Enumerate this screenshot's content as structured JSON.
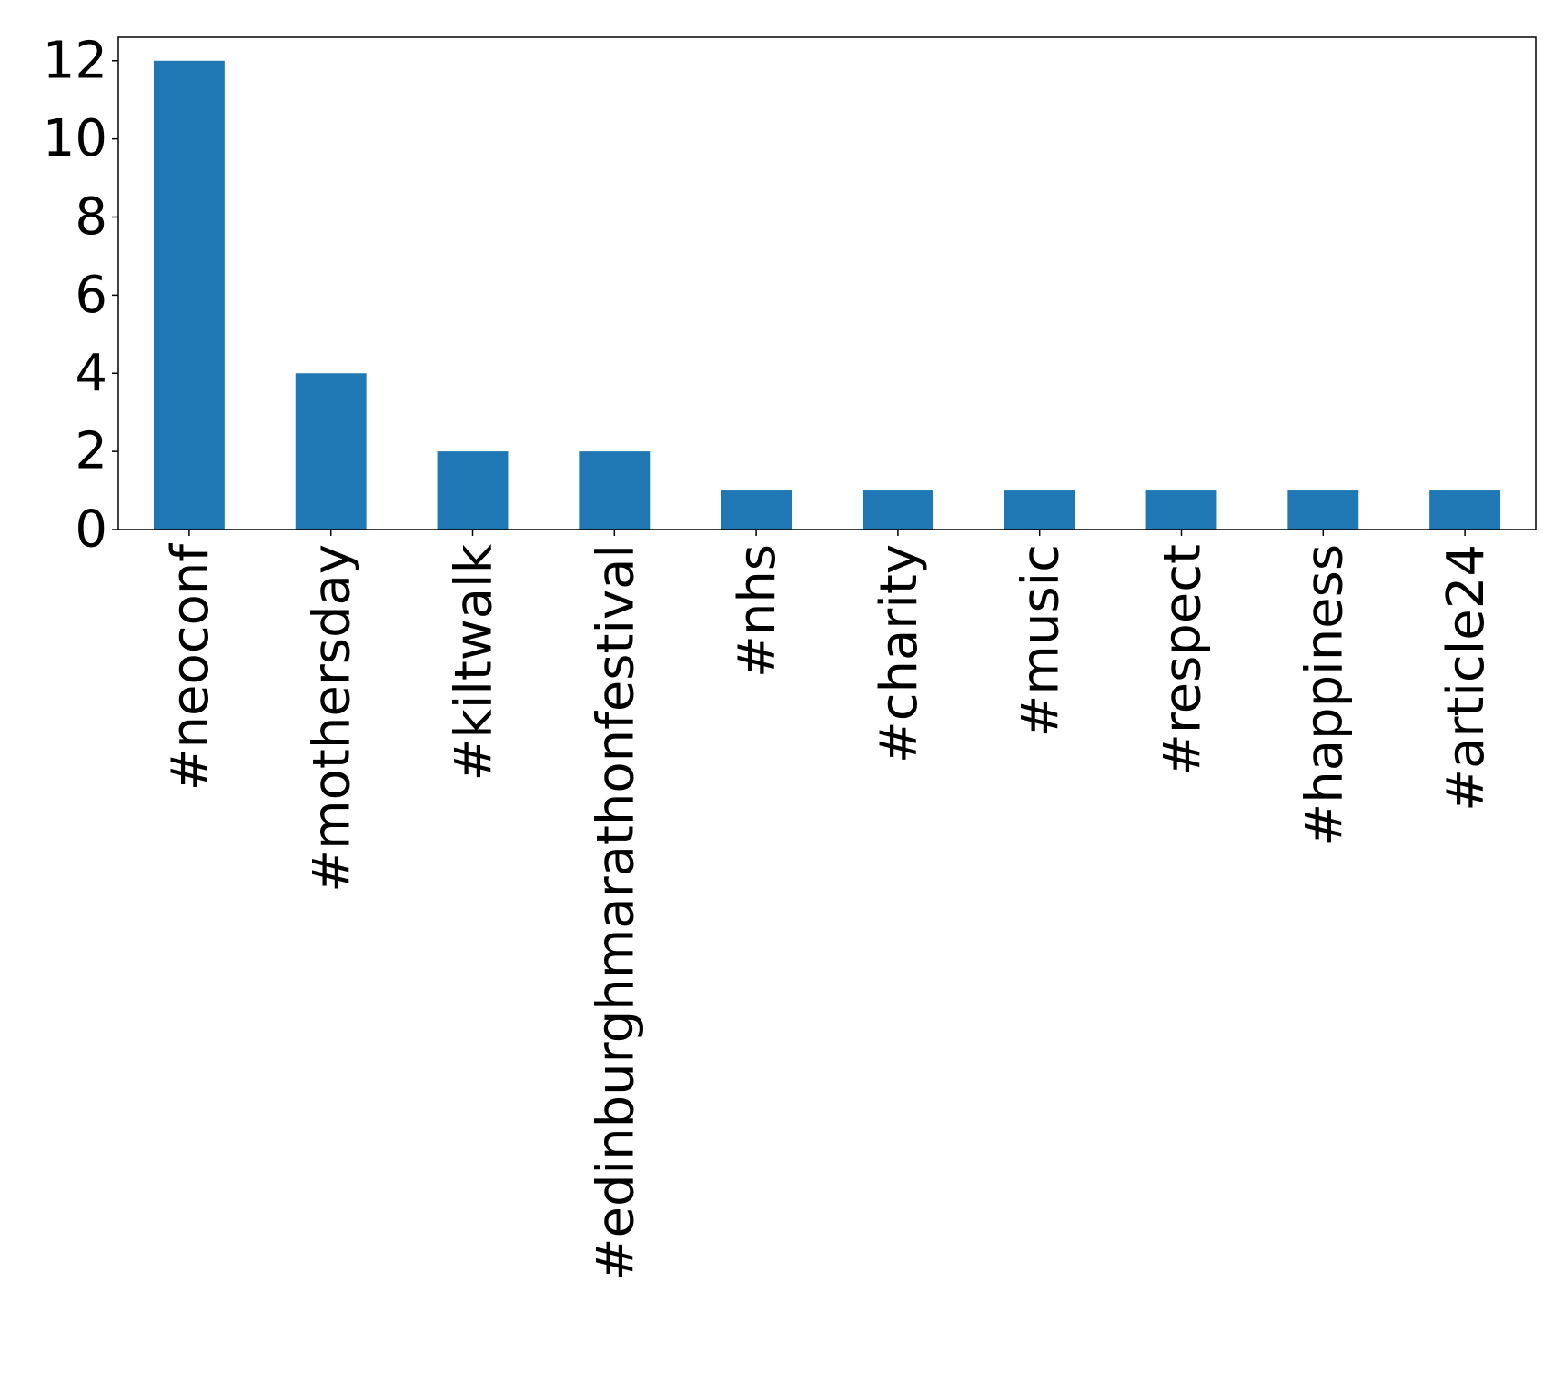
{
  "chart_data": {
    "type": "bar",
    "title": "",
    "xlabel": "",
    "ylabel": "",
    "categories": [
      "#neoconf",
      "#mothersday",
      "#kiltwalk",
      "#edinburghmarathonfestival",
      "#nhs",
      "#charity",
      "#music",
      "#respect",
      "#happiness",
      "#article24"
    ],
    "values": [
      12,
      4,
      2,
      2,
      1,
      1,
      1,
      1,
      1,
      1
    ],
    "ylim": [
      0,
      12.6
    ],
    "yticks": [
      0,
      2,
      4,
      6,
      8,
      10,
      12
    ],
    "grid": false,
    "legend": "none",
    "bar_color": "#1f77b4"
  }
}
